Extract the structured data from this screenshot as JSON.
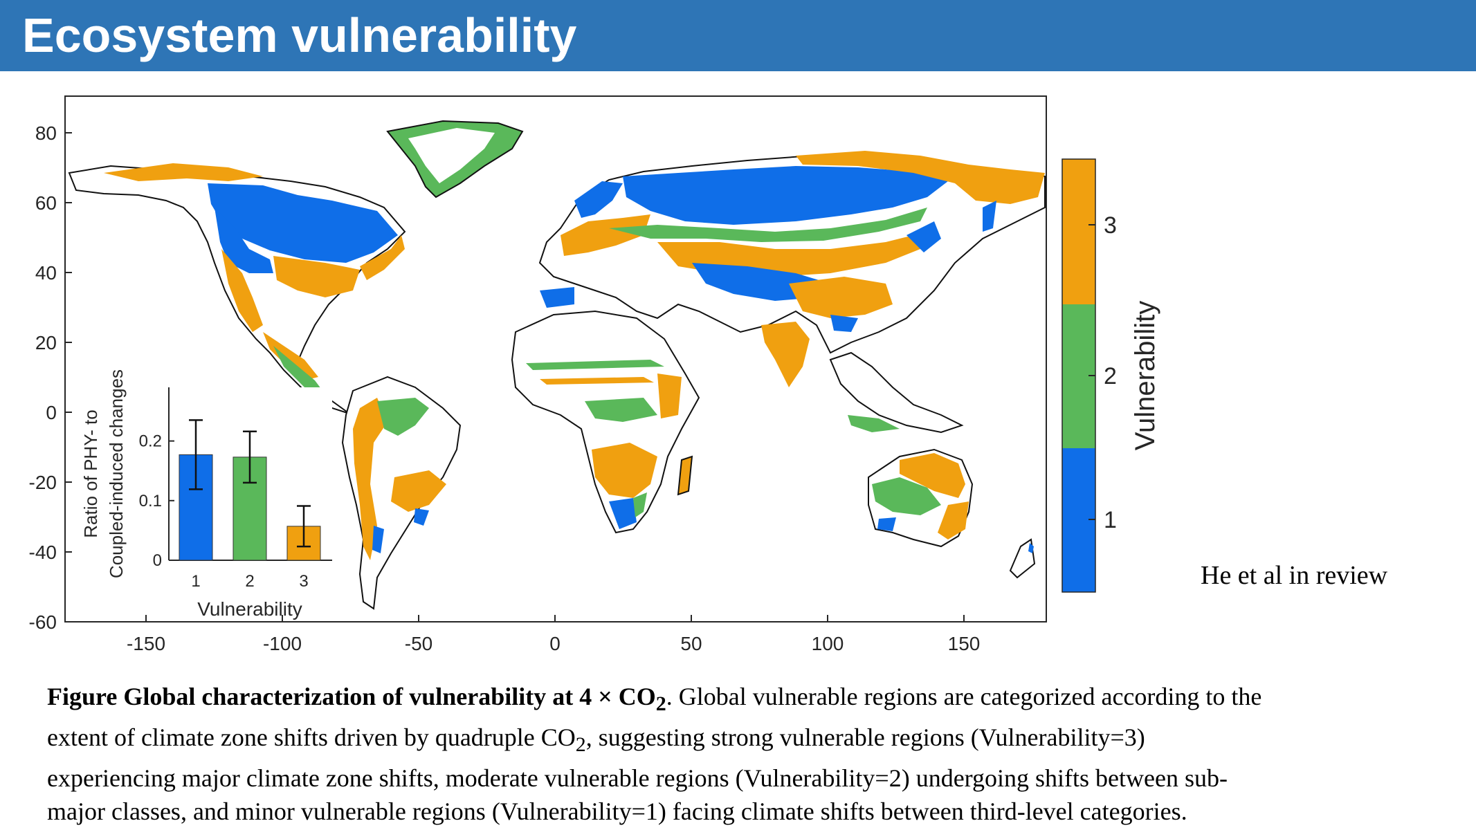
{
  "header": {
    "title": "Ecosystem vulnerability"
  },
  "colors": {
    "header_bg": "#2e75b6",
    "v1": "#0f6ee8",
    "v2": "#5ab85a",
    "v3": "#f0a010"
  },
  "chart_data": [
    {
      "type": "heatmap",
      "title": "",
      "x_ticks": [
        "-150",
        "-100",
        "-50",
        "0",
        "50",
        "100",
        "150"
      ],
      "y_ticks": [
        "80",
        "60",
        "40",
        "20",
        "0",
        "-20",
        "-40",
        "-60"
      ],
      "xlim": [
        -180,
        180
      ],
      "ylim": [
        -60,
        90
      ],
      "colorbar": {
        "label": "Vulnerability",
        "levels": [
          1,
          2,
          3
        ],
        "tick_labels": [
          "1",
          "2",
          "3"
        ]
      }
    },
    {
      "type": "bar",
      "categories": [
        "1",
        "2",
        "3"
      ],
      "values": [
        0.177,
        0.173,
        0.057
      ],
      "errors": [
        0.058,
        0.043,
        0.034
      ],
      "xlabel": "Vulnerability",
      "ylabel_line1": "Ratio of PHY- to",
      "ylabel_line2": "Coupled-induced changes",
      "yticks": [
        "0",
        "0.1",
        "0.2"
      ],
      "ylim": [
        0,
        0.29
      ]
    }
  ],
  "credit": "He et al in review",
  "caption": {
    "bold_part": "Figure Global characterization of vulnerability at 4 × CO",
    "bold_sub": "2",
    "line1_rest": ". Global vulnerable regions are categorized according to the",
    "line2_pre": "extent of climate zone shifts driven by quadruple CO",
    "line2_sub": "2",
    "line2_rest": ", suggesting strong vulnerable regions (Vulnerability=3)",
    "line3": "experiencing major climate zone shifts, moderate vulnerable regions (Vulnerability=2) undergoing shifts between sub-",
    "line4": "major classes, and minor vulnerable regions (Vulnerability=1) facing climate shifts between third-level categories."
  }
}
